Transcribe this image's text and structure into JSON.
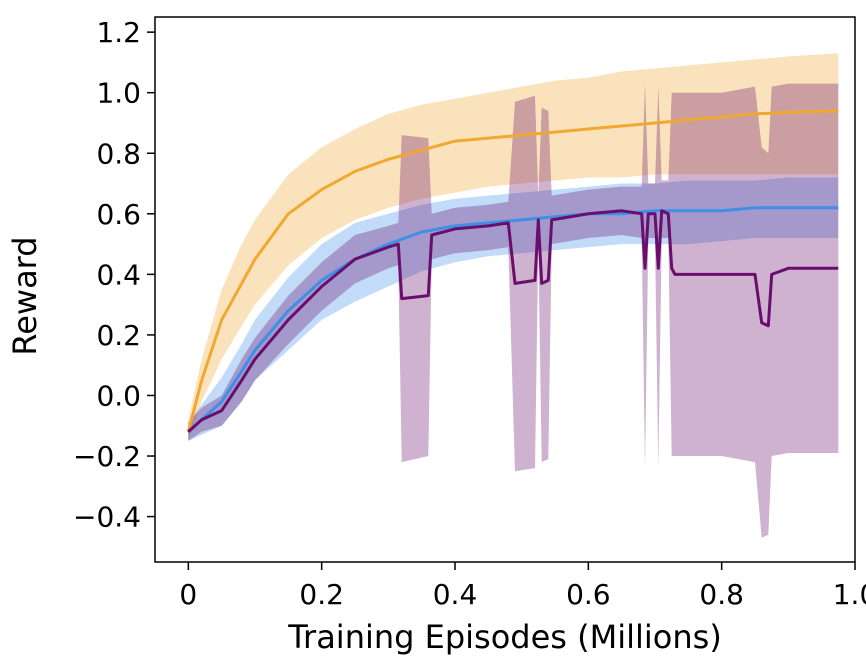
{
  "chart_data": {
    "type": "line",
    "title": "",
    "xlabel": "Training Episodes (Millions)",
    "ylabel": "Reward",
    "xlim": [
      -0.05,
      1.0
    ],
    "ylim": [
      -0.55,
      1.25
    ],
    "xticks": [
      0,
      0.2,
      0.4,
      0.6,
      0.8,
      1.0
    ],
    "xtick_labels": [
      "0",
      "0.2",
      "0.4",
      "0.6",
      "0.8",
      "1.0"
    ],
    "yticks": [
      -0.4,
      -0.2,
      0.0,
      0.2,
      0.4,
      0.6,
      0.8,
      1.0,
      1.2
    ],
    "ytick_labels": [
      "−0.4",
      "−0.2",
      "0.0",
      "0.2",
      "0.4",
      "0.6",
      "0.8",
      "1.0",
      "1.2"
    ],
    "grid": false,
    "legend": "none",
    "series": [
      {
        "color": "#F0A830",
        "x": [
          0,
          0.02,
          0.05,
          0.08,
          0.1,
          0.15,
          0.2,
          0.25,
          0.3,
          0.35,
          0.4,
          0.45,
          0.5,
          0.55,
          0.6,
          0.65,
          0.7,
          0.75,
          0.8,
          0.85,
          0.9,
          0.975
        ],
        "values": [
          -0.12,
          0.05,
          0.25,
          0.37,
          0.45,
          0.6,
          0.68,
          0.74,
          0.78,
          0.81,
          0.84,
          0.85,
          0.86,
          0.87,
          0.88,
          0.89,
          0.9,
          0.91,
          0.92,
          0.93,
          0.935,
          0.94
        ],
        "lower": [
          -0.15,
          -0.02,
          0.12,
          0.23,
          0.3,
          0.43,
          0.52,
          0.58,
          0.62,
          0.65,
          0.67,
          0.69,
          0.7,
          0.71,
          0.72,
          0.72,
          0.73,
          0.73,
          0.73,
          0.73,
          0.73,
          0.73
        ],
        "upper": [
          -0.08,
          0.12,
          0.35,
          0.5,
          0.58,
          0.73,
          0.82,
          0.88,
          0.93,
          0.96,
          0.98,
          1.0,
          1.02,
          1.04,
          1.05,
          1.07,
          1.08,
          1.09,
          1.1,
          1.11,
          1.12,
          1.13
        ]
      },
      {
        "color": "#3D8FE8",
        "x": [
          0,
          0.02,
          0.05,
          0.08,
          0.1,
          0.15,
          0.2,
          0.25,
          0.3,
          0.35,
          0.4,
          0.45,
          0.5,
          0.55,
          0.6,
          0.65,
          0.7,
          0.75,
          0.8,
          0.85,
          0.9,
          0.975
        ],
        "values": [
          -0.12,
          -0.08,
          -0.02,
          0.08,
          0.15,
          0.28,
          0.38,
          0.45,
          0.5,
          0.54,
          0.56,
          0.57,
          0.58,
          0.59,
          0.6,
          0.6,
          0.61,
          0.61,
          0.61,
          0.62,
          0.62,
          0.62
        ],
        "lower": [
          -0.15,
          -0.13,
          -0.1,
          -0.02,
          0.05,
          0.15,
          0.25,
          0.31,
          0.36,
          0.41,
          0.44,
          0.46,
          0.47,
          0.48,
          0.49,
          0.5,
          0.5,
          0.5,
          0.51,
          0.52,
          0.52,
          0.52
        ],
        "upper": [
          -0.09,
          -0.03,
          0.06,
          0.17,
          0.25,
          0.39,
          0.5,
          0.57,
          0.6,
          0.63,
          0.65,
          0.66,
          0.67,
          0.68,
          0.69,
          0.7,
          0.7,
          0.71,
          0.71,
          0.71,
          0.72,
          0.72
        ]
      },
      {
        "color": "#6A0E6E",
        "x": [
          0,
          0.02,
          0.05,
          0.08,
          0.1,
          0.15,
          0.2,
          0.25,
          0.3,
          0.315,
          0.32,
          0.36,
          0.365,
          0.4,
          0.45,
          0.48,
          0.49,
          0.52,
          0.525,
          0.53,
          0.54,
          0.545,
          0.6,
          0.65,
          0.68,
          0.685,
          0.69,
          0.7,
          0.705,
          0.71,
          0.72,
          0.725,
          0.73,
          0.8,
          0.85,
          0.86,
          0.87,
          0.875,
          0.9,
          0.95,
          0.975
        ],
        "values": [
          -0.12,
          -0.08,
          -0.05,
          0.05,
          0.12,
          0.25,
          0.36,
          0.45,
          0.49,
          0.5,
          0.32,
          0.33,
          0.53,
          0.55,
          0.56,
          0.57,
          0.37,
          0.38,
          0.58,
          0.37,
          0.38,
          0.58,
          0.6,
          0.61,
          0.6,
          0.42,
          0.6,
          0.6,
          0.42,
          0.61,
          0.6,
          0.42,
          0.4,
          0.4,
          0.4,
          0.24,
          0.23,
          0.4,
          0.42,
          0.42,
          0.42
        ],
        "lower": [
          -0.15,
          -0.12,
          -0.1,
          -0.02,
          0.05,
          0.17,
          0.28,
          0.37,
          0.42,
          0.43,
          -0.22,
          -0.2,
          0.45,
          0.47,
          0.48,
          0.49,
          -0.25,
          -0.24,
          0.5,
          -0.22,
          -0.21,
          0.5,
          0.52,
          0.53,
          0.52,
          -0.24,
          0.52,
          0.52,
          -0.24,
          0.52,
          0.52,
          -0.2,
          -0.2,
          -0.2,
          -0.22,
          -0.47,
          -0.46,
          -0.2,
          -0.19,
          -0.19,
          -0.19
        ],
        "upper": [
          -0.09,
          -0.04,
          0.0,
          0.12,
          0.19,
          0.33,
          0.44,
          0.53,
          0.56,
          0.57,
          0.86,
          0.85,
          0.6,
          0.62,
          0.63,
          0.64,
          0.97,
          0.99,
          0.66,
          0.95,
          0.94,
          0.66,
          0.68,
          0.69,
          0.69,
          1.03,
          0.7,
          0.7,
          1.02,
          0.71,
          0.71,
          1.0,
          1.0,
          1.0,
          1.02,
          0.82,
          0.8,
          1.02,
          1.03,
          1.03,
          1.03
        ]
      }
    ]
  }
}
